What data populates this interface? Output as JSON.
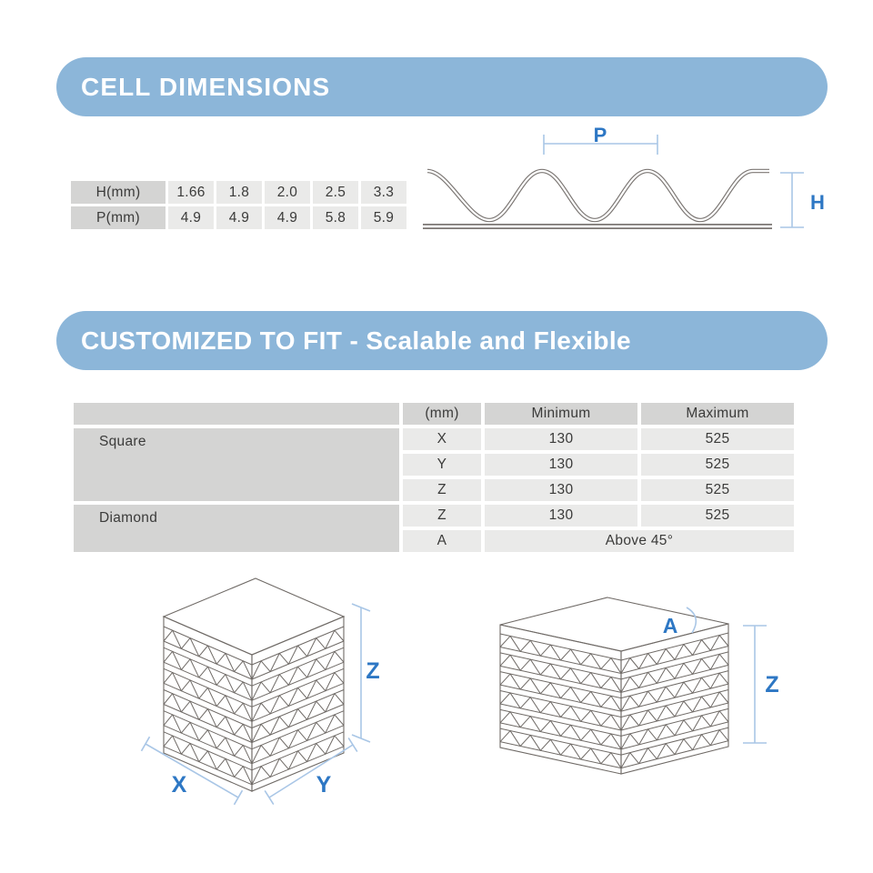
{
  "colors": {
    "banner_blue": "#8cb6d9",
    "dim_label_blue": "#2d77c4",
    "dim_line_blue": "#a9c6e6",
    "table_dark": "#d4d4d3",
    "table_light": "#eaeae9",
    "line_gray": "#6f6a66",
    "wave_gray": "#7b7673",
    "text_dark": "#3b3b3a"
  },
  "section_cell_dimensions": {
    "title": "CELL DIMENSIONS",
    "table": {
      "rows": [
        {
          "label": "H(mm)",
          "values": [
            "1.66",
            "1.8",
            "2.0",
            "2.5",
            "3.3"
          ]
        },
        {
          "label": "P(mm)",
          "values": [
            "4.9",
            "4.9",
            "4.9",
            "5.8",
            "5.9"
          ]
        }
      ]
    },
    "diagram": {
      "pitch_label": "P",
      "height_label": "H"
    }
  },
  "section_customized": {
    "title": "CUSTOMIZED TO FIT - Scalable and Flexible",
    "table": {
      "headers": [
        "",
        "(mm)",
        "Minimum",
        "Maximum"
      ],
      "groups": [
        {
          "name": "Square",
          "rows": [
            {
              "axis": "X",
              "min": "130",
              "max": "525"
            },
            {
              "axis": "Y",
              "min": "130",
              "max": "525"
            },
            {
              "axis": "Z",
              "min": "130",
              "max": "525"
            }
          ]
        },
        {
          "name": "Diamond",
          "rows": [
            {
              "axis": "Z",
              "min": "130",
              "max": "525"
            },
            {
              "axis": "A",
              "span": "Above 45°"
            }
          ]
        }
      ]
    },
    "cube_square_labels": {
      "x": "X",
      "y": "Y",
      "z": "Z"
    },
    "cube_diamond_labels": {
      "a": "A",
      "z": "Z"
    }
  }
}
